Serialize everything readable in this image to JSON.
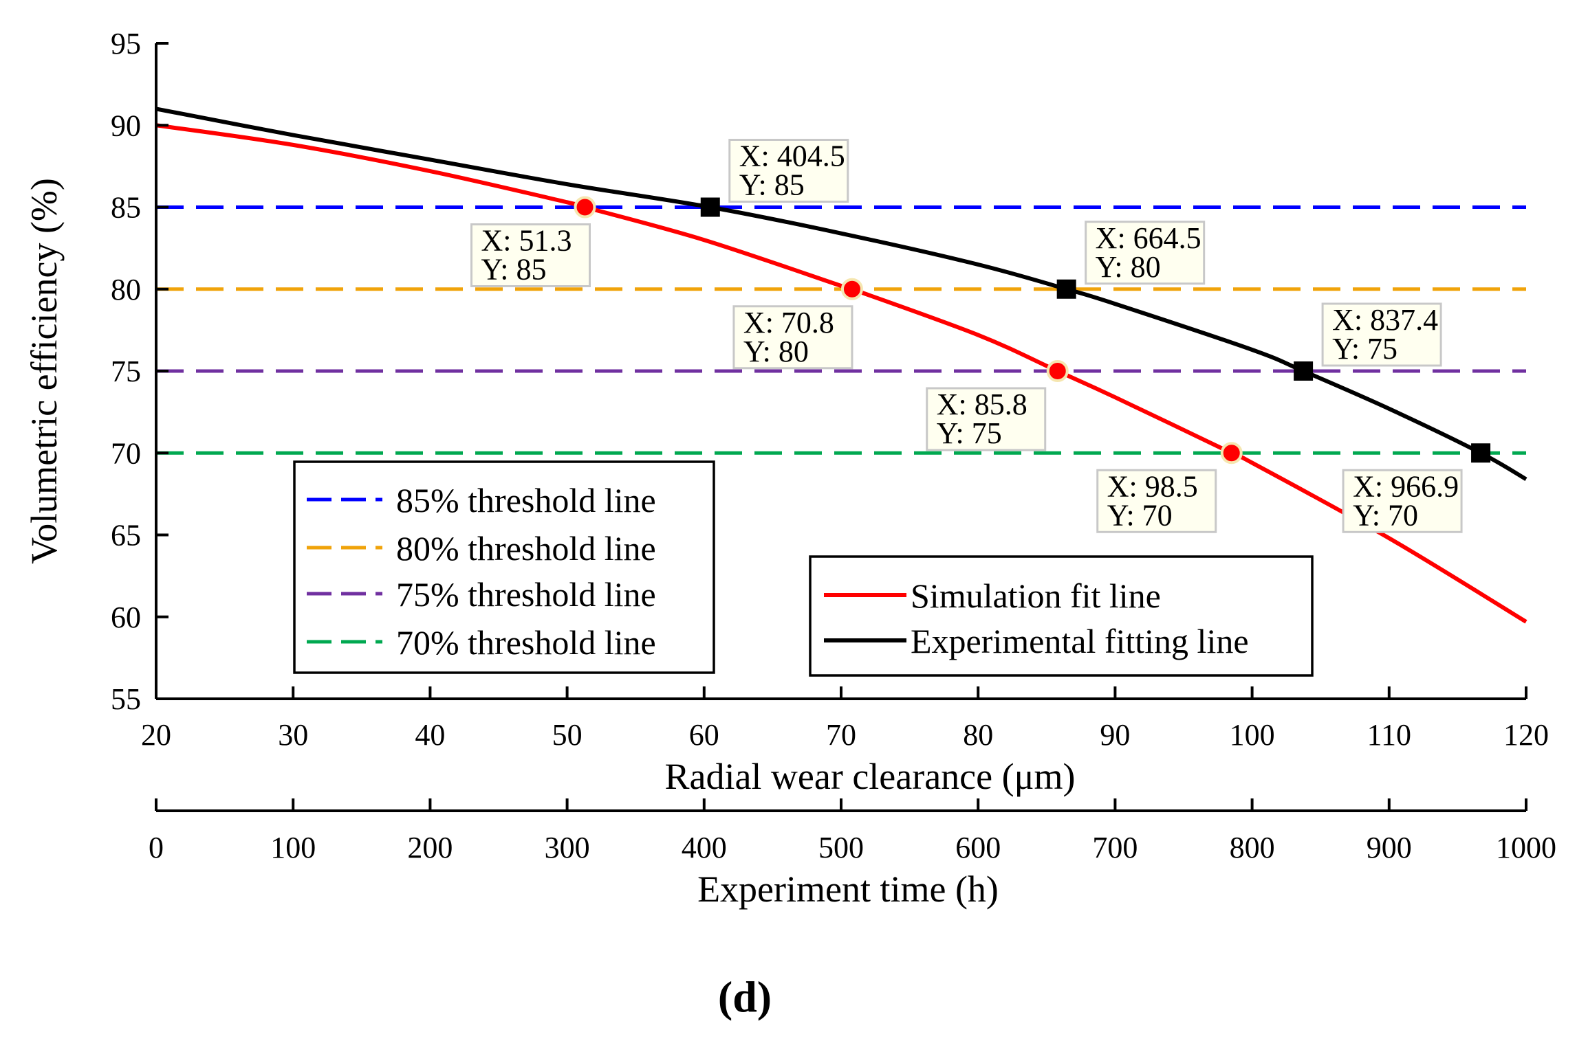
{
  "chart_data": {
    "type": "line",
    "title": "",
    "panel_label": "(d)",
    "ylabel": "Volumetric efficiency (%)",
    "xlabel": "Radial wear clearance (μm)",
    "x2label": "Experiment time (h)",
    "xlim": [
      20,
      120
    ],
    "ylim": [
      55,
      95
    ],
    "x2lim": [
      0,
      1000
    ],
    "xticks": [
      20,
      30,
      40,
      50,
      60,
      70,
      80,
      90,
      100,
      110,
      120
    ],
    "yticks": [
      55,
      60,
      65,
      70,
      75,
      80,
      85,
      90,
      95
    ],
    "x2ticks": [
      0,
      100,
      200,
      300,
      400,
      500,
      600,
      700,
      800,
      900,
      1000
    ],
    "series": [
      {
        "name": "Simulation fit line",
        "color": "#ff0000",
        "axis": "x",
        "x": [
          20,
          30,
          40,
          50,
          51.3,
          60,
          70,
          70.8,
          80,
          85.8,
          90,
          98.5,
          100,
          110,
          120
        ],
        "y": [
          90,
          88.8,
          87.2,
          85.3,
          85,
          83,
          80.2,
          80,
          77.2,
          75,
          73.4,
          70,
          69.4,
          64.8,
          59.7
        ]
      },
      {
        "name": "Experimental fitting line",
        "color": "#000000",
        "axis": "x2",
        "x": [
          0,
          100,
          200,
          300,
          404.5,
          500,
          600,
          664.5,
          700,
          800,
          837.4,
          900,
          966.9,
          1000
        ],
        "y": [
          91,
          89.4,
          87.9,
          86.4,
          85,
          83.4,
          81.5,
          80,
          79.1,
          76.3,
          75,
          72.7,
          70,
          68.4
        ]
      }
    ],
    "thresholds": [
      {
        "name": "85% threshold line",
        "value": 85,
        "color": "#0000ff"
      },
      {
        "name": "80% threshold line",
        "value": 80,
        "color": "#f0a30a"
      },
      {
        "name": "75% threshold line",
        "value": 75,
        "color": "#7030a0"
      },
      {
        "name": "70% threshold line",
        "value": 70,
        "color": "#00a850"
      }
    ],
    "sim_points": [
      {
        "x": 51.3,
        "y": 85,
        "label_x": "X: 51.3",
        "label_y": "Y: 85"
      },
      {
        "x": 70.8,
        "y": 80,
        "label_x": "X: 70.8",
        "label_y": "Y: 80"
      },
      {
        "x": 85.8,
        "y": 75,
        "label_x": "X: 85.8",
        "label_y": "Y: 75"
      },
      {
        "x": 98.5,
        "y": 70,
        "label_x": "X: 98.5",
        "label_y": "Y: 70"
      }
    ],
    "exp_points": [
      {
        "x": 404.5,
        "y": 85,
        "label_x": "X: 404.5",
        "label_y": "Y: 85"
      },
      {
        "x": 664.5,
        "y": 80,
        "label_x": "X: 664.5",
        "label_y": "Y: 80"
      },
      {
        "x": 837.4,
        "y": 75,
        "label_x": "X: 837.4",
        "label_y": "Y: 75"
      },
      {
        "x": 966.9,
        "y": 70,
        "label_x": "X: 966.9",
        "label_y": "Y: 70"
      }
    ],
    "threshold_legend_position": "lower-left",
    "series_legend_position": "lower-center-right",
    "grid": false
  }
}
